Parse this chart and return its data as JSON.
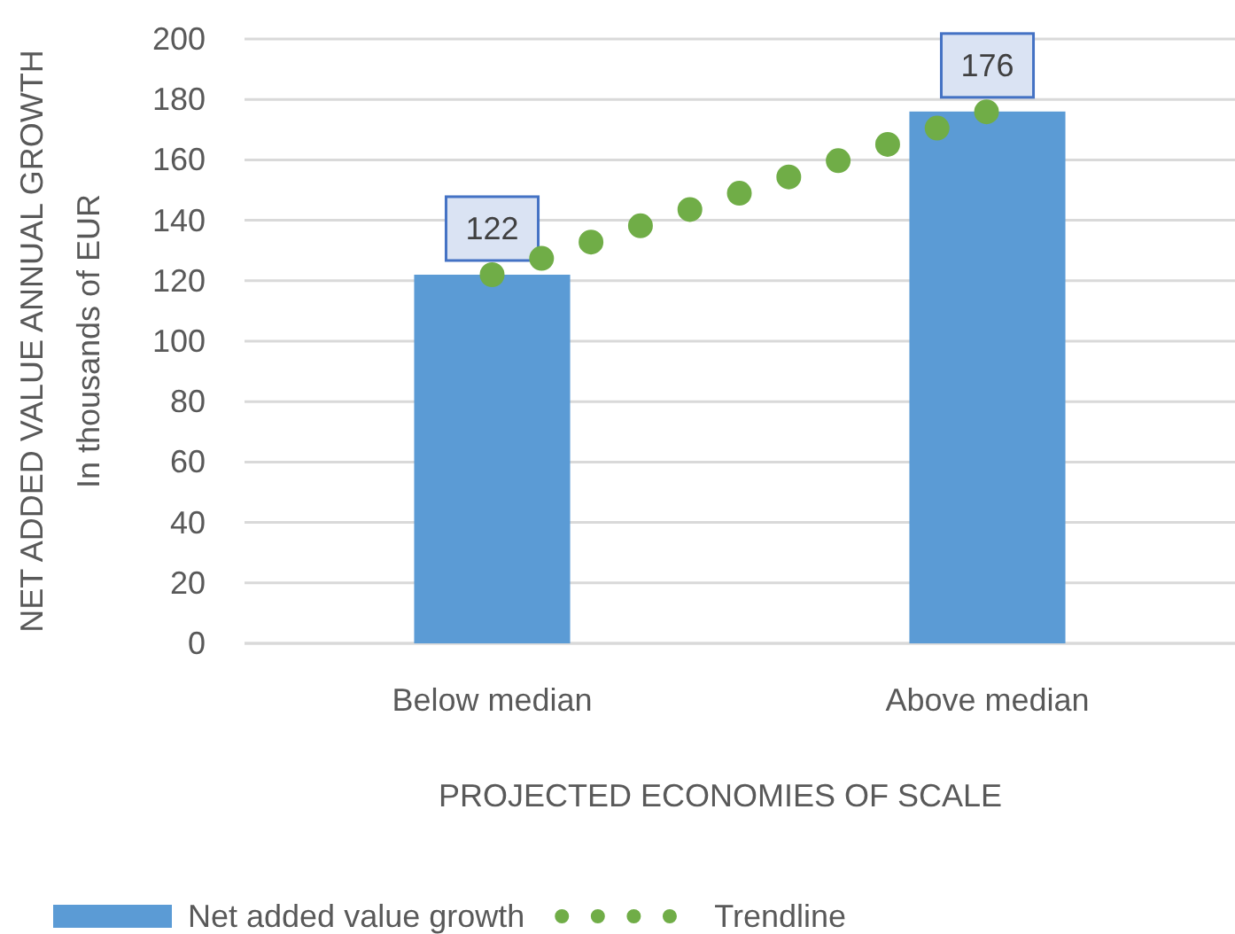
{
  "chart_data": {
    "type": "bar",
    "categories": [
      "Below median",
      "Above median"
    ],
    "xlabel": "PROJECTED ECONOMIES OF SCALE",
    "ylabel": "NET ADDED VALUE ANNUAL GROWTH\nIn thousands of EUR",
    "series": [
      {
        "name": "Net added value growth",
        "color": "#5b9bd5",
        "values": [
          122,
          176
        ],
        "value_labels": [
          "122",
          "176"
        ]
      },
      {
        "name": "Trendline",
        "type": "line",
        "color": "#70ad47",
        "values": [
          122,
          176
        ],
        "line_style": "dotted"
      }
    ],
    "ylim": [
      0,
      200
    ],
    "yticks": [
      0,
      20,
      40,
      60,
      80,
      100,
      120,
      140,
      160,
      180,
      200
    ],
    "grid": "y",
    "legend": "bottom"
  }
}
